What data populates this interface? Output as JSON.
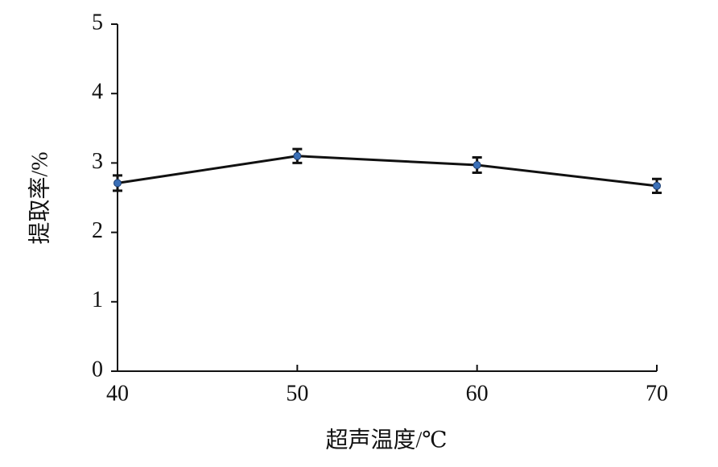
{
  "chart_data": {
    "type": "line",
    "x_label": "超声温度/℃",
    "y_label": "提取率/%",
    "x": [
      40,
      50,
      60,
      70
    ],
    "series": [
      {
        "color": "#111111",
        "marker_color": "#3a6fb7",
        "values": [
          2.71,
          3.1,
          2.97,
          2.67
        ],
        "errors": [
          0.11,
          0.1,
          0.11,
          0.1
        ]
      }
    ],
    "xlim": [
      40,
      70
    ],
    "xticks": [
      40,
      50,
      60,
      70
    ],
    "ylim": [
      0,
      5
    ],
    "yticks": [
      0,
      1,
      2,
      3,
      4,
      5
    ],
    "grid": false
  }
}
